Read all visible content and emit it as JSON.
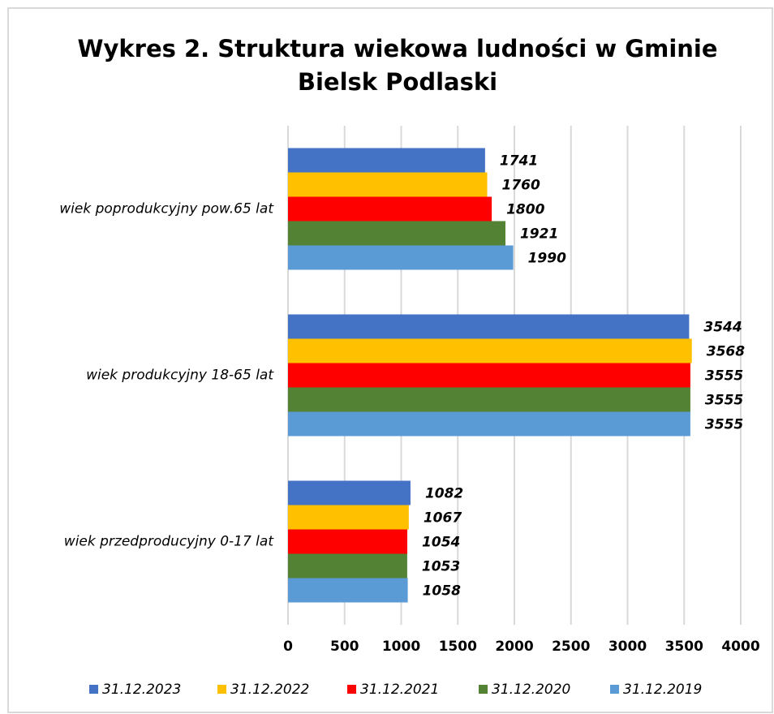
{
  "chart_data": {
    "type": "bar",
    "orientation": "horizontal",
    "title": [
      "Wykres 2. Struktura wiekowa ludności w Gminie",
      "Bielsk Podlaski"
    ],
    "categories": [
      "wiek poprodukcyjny pow.65 lat",
      "wiek produkcyjny 18-65 lat",
      "wiek przedproducyjny 0-17 lat"
    ],
    "series": [
      {
        "name": "31.12.2023",
        "color": "#4472c4",
        "values": [
          1741,
          3544,
          1082
        ]
      },
      {
        "name": "31.12.2022",
        "color": "#ffc000",
        "values": [
          1760,
          3568,
          1067
        ]
      },
      {
        "name": "31.12.2021",
        "color": "#ff0000",
        "values": [
          1800,
          3555,
          1054
        ]
      },
      {
        "name": "31.12.2020",
        "color": "#548235",
        "values": [
          1921,
          3555,
          1053
        ]
      },
      {
        "name": "31.12.2019",
        "color": "#5b9bd5",
        "values": [
          1990,
          3555,
          1058
        ]
      }
    ],
    "xlim": [
      0,
      4000
    ],
    "xticks": [
      0,
      500,
      1000,
      1500,
      2000,
      2500,
      3000,
      3500,
      4000
    ],
    "grid": true,
    "legend": "bottom"
  }
}
